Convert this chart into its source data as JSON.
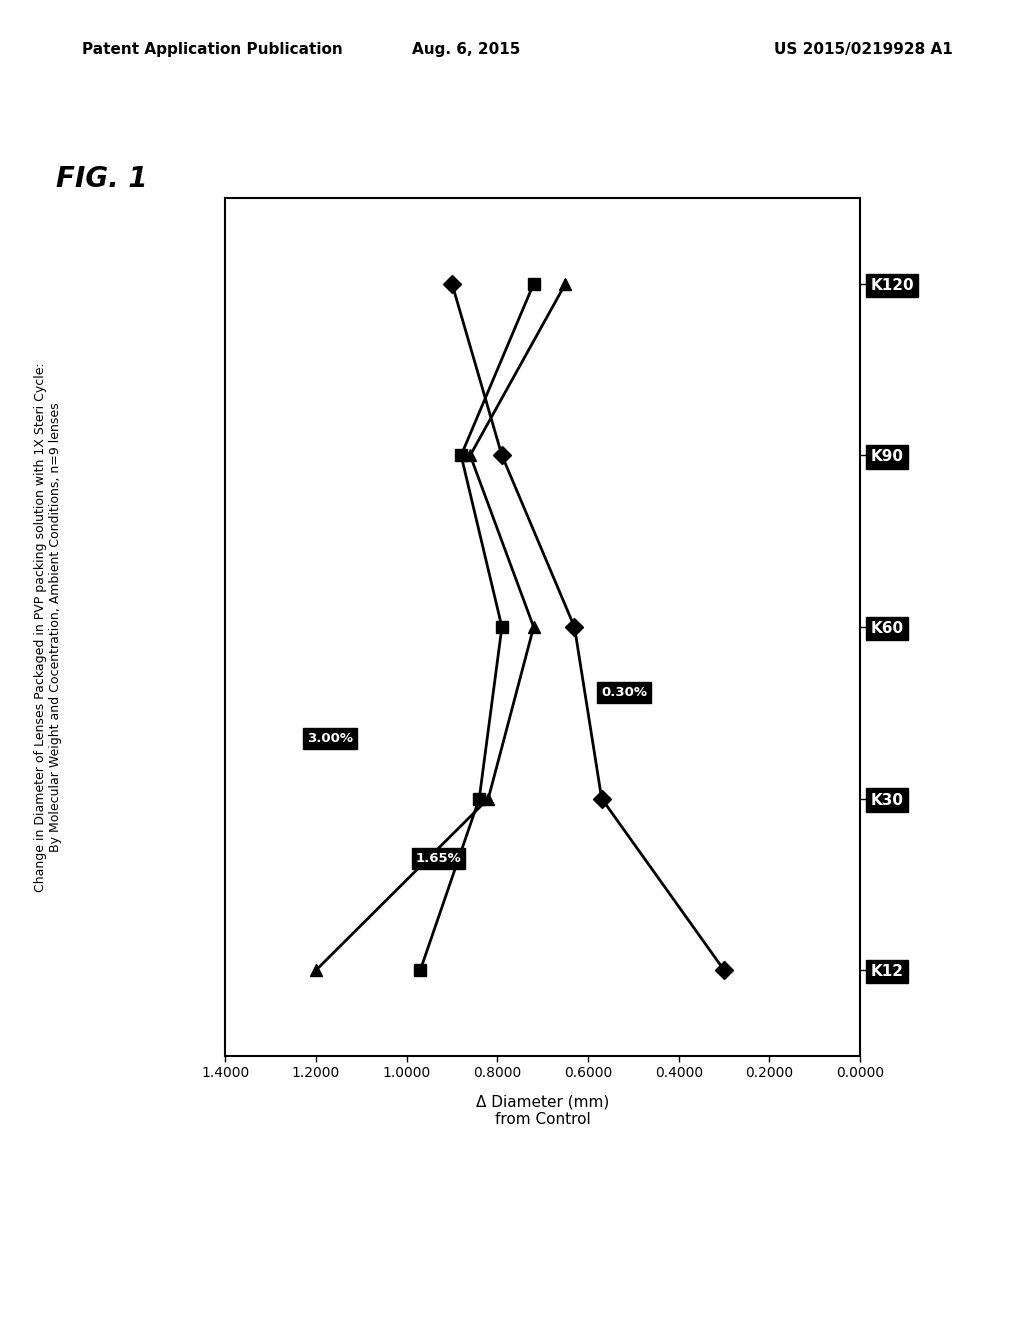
{
  "header_left": "Patent Application Publication",
  "header_center": "Aug. 6, 2015",
  "header_right": "US 2015/0219928 A1",
  "fig_label": "FIG. 1",
  "title_line1": "Change in Diameter of Lenses Packaged in PVP packing solution with 1X Steri Cycle:",
  "title_line2": "By Molecular Weight and Cocentration, Ambient Conditions, n=9 lenses",
  "xlabel": "Δ Diameter (mm)\nfrom Control",
  "x_categories": [
    "K12",
    "K30",
    "K60",
    "K90",
    "K120"
  ],
  "x_numeric": [
    0,
    1,
    2,
    3,
    4
  ],
  "y_min": 0.0,
  "y_max": 1.4,
  "y_ticks": [
    0.0,
    0.2,
    0.4,
    0.6,
    0.8,
    1.0,
    1.2,
    1.4
  ],
  "y_tick_labels": [
    "0.0000",
    "0.2000",
    "0.4000",
    "0.6000",
    "0.8000",
    "1.0000",
    "1.2000",
    "1.4000"
  ],
  "series": [
    {
      "label": "3.00%",
      "marker": "^",
      "values": [
        1.2,
        0.82,
        0.72,
        0.86,
        0.65
      ]
    },
    {
      "label": "1.65%",
      "marker": "s",
      "values": [
        0.97,
        0.84,
        0.79,
        0.88,
        0.72
      ]
    },
    {
      "label": "0.30%",
      "marker": "D",
      "values": [
        0.3,
        0.57,
        0.63,
        0.79,
        0.9
      ]
    }
  ],
  "annotations": [
    {
      "label": "3.00%",
      "cat_idx": 1,
      "val": 1.2
    },
    {
      "label": "1.65%",
      "cat_idx": 1,
      "val": 0.97
    },
    {
      "label": "0.30%",
      "cat_idx": 2,
      "val": 0.57
    }
  ],
  "line_color": "#000000",
  "bg_color": "#ffffff",
  "annotation_bg": "#000000",
  "annotation_fg": "#ffffff"
}
